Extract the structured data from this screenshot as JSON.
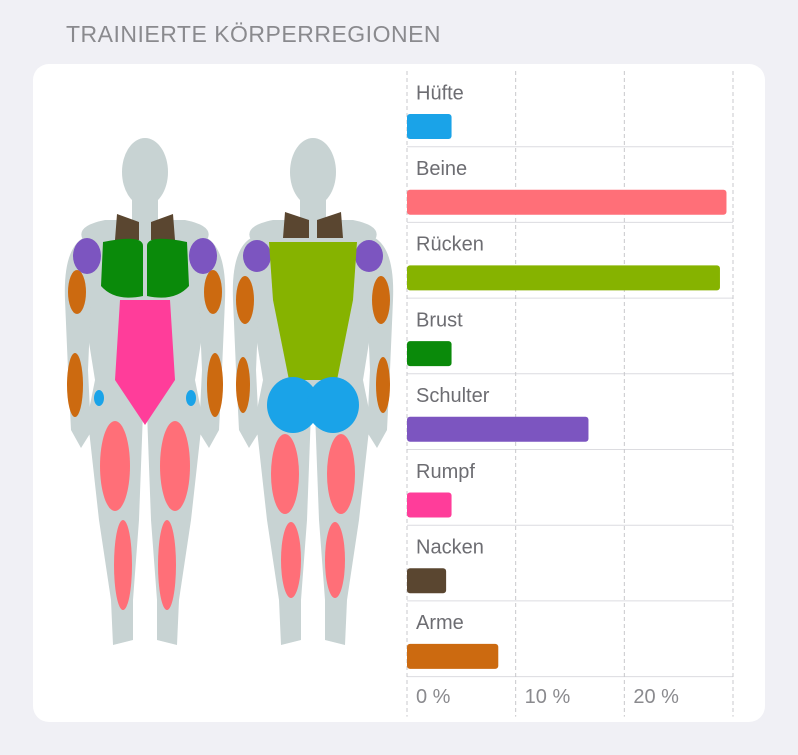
{
  "header": {
    "title": "TRAINIERTE KÖRPERREGIONEN"
  },
  "chart_data": {
    "type": "bar",
    "orientation": "horizontal",
    "categories": [
      "Hüfte",
      "Beine",
      "Rücken",
      "Brust",
      "Schulter",
      "Rumpf",
      "Nacken",
      "Arme"
    ],
    "values": [
      4.1,
      29.4,
      28.8,
      4.1,
      16.7,
      4.1,
      3.6,
      8.4
    ],
    "colors": [
      "#1aa3e8",
      "#ff6f78",
      "#86b300",
      "#0a8a0a",
      "#7c55c0",
      "#ff3d9a",
      "#5a4630",
      "#cc6a10"
    ],
    "xlim": [
      0,
      30
    ],
    "xticks": [
      {
        "value": 0,
        "label": "0 %"
      },
      {
        "value": 10,
        "label": "10 %"
      },
      {
        "value": 20,
        "label": "20 %"
      }
    ],
    "grid": true
  }
}
